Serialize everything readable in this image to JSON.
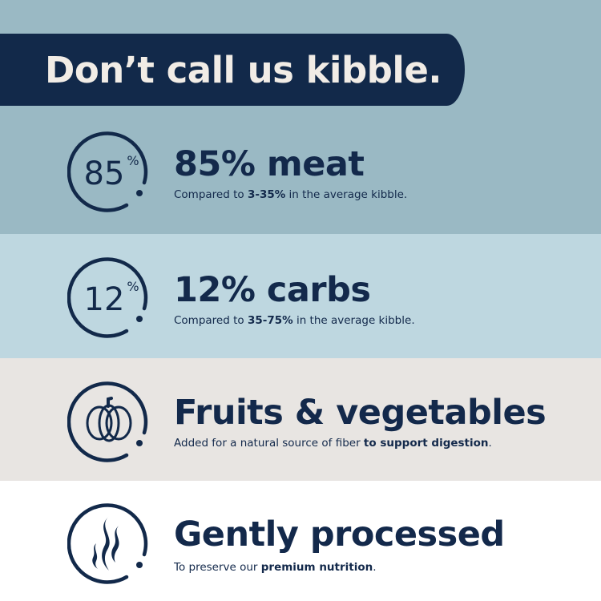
{
  "headline": "Don’t call us kibble.",
  "colors": {
    "navy": "#12294a",
    "band1": "#9ab9c4",
    "band2": "#bed7e0",
    "band3": "#e8e5e2",
    "band4": "#ffffff"
  },
  "features": [
    {
      "icon": "85-percent-dial-icon",
      "icon_text": "85",
      "icon_sup": "%",
      "title": "85% meat",
      "sub_pre": "Compared to ",
      "sub_bold": "3-35%",
      "sub_post": " in the average kibble."
    },
    {
      "icon": "12-percent-dial-icon",
      "icon_text": "12",
      "icon_sup": "%",
      "title": "12% carbs",
      "sub_pre": "Compared to ",
      "sub_bold": "35-75%",
      "sub_post": " in the average kibble."
    },
    {
      "icon": "pumpkin-icon",
      "title": "Fruits & vegetables",
      "sub_pre": "Added for a natural source of fiber ",
      "sub_bold": "to support digestion",
      "sub_post": "."
    },
    {
      "icon": "steam-icon",
      "title": "Gently processed",
      "sub_pre": "To preserve our ",
      "sub_bold": "premium nutrition",
      "sub_post": "."
    }
  ]
}
